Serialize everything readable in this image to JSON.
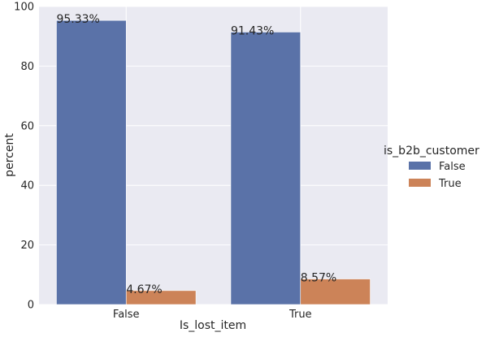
{
  "chart_data": {
    "type": "bar",
    "categories": [
      "False",
      "True"
    ],
    "series": [
      {
        "name": "False",
        "values": [
          95.33,
          91.43
        ],
        "labels": [
          "95.33%",
          "91.43%"
        ],
        "color": "#5a72a8"
      },
      {
        "name": "True",
        "values": [
          4.67,
          8.57
        ],
        "labels": [
          "4.67%",
          "8.57%"
        ],
        "color": "#cc8358"
      }
    ],
    "xlabel": "Is_lost_item",
    "ylabel": "percent",
    "ylim": [
      0,
      100
    ],
    "yticks": [
      0,
      20,
      40,
      60,
      80,
      100
    ],
    "grid": true,
    "legend": {
      "title": "is_b2b_customer",
      "placement": "right"
    },
    "background": "#eaeaf2",
    "grid_color": "#ffffff"
  }
}
